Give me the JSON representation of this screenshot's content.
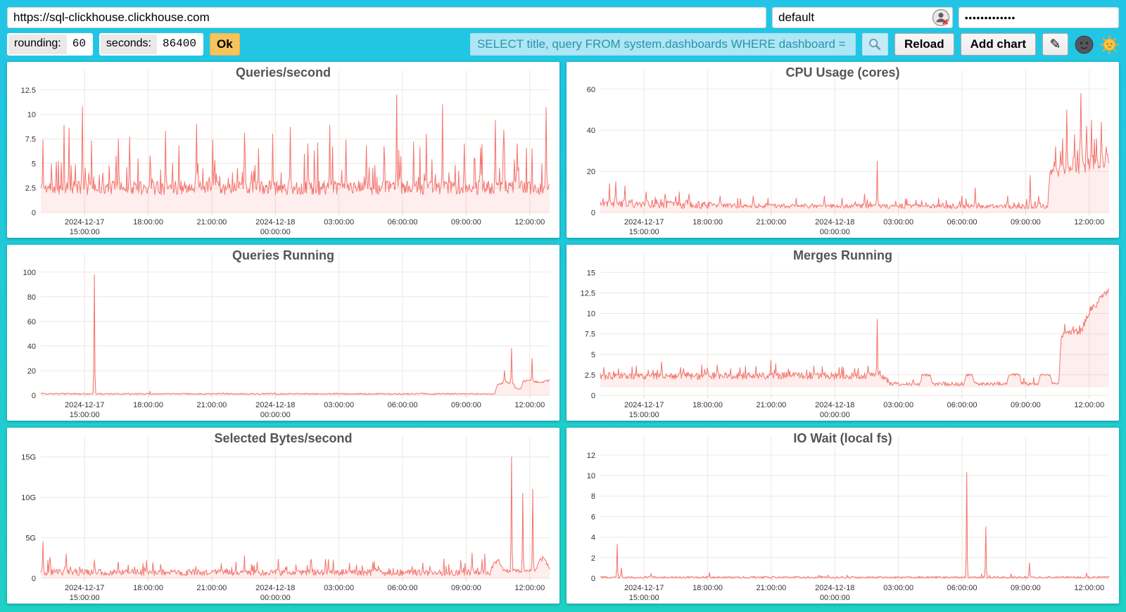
{
  "toolbar": {
    "url": "https://sql-clickhouse.clickhouse.com",
    "user": "default",
    "password_masked": "•••••••••••••",
    "rounding_label": "rounding:",
    "rounding_value": "60",
    "seconds_label": "seconds:",
    "seconds_value": "86400",
    "ok_label": "Ok",
    "search_query": "SELECT title, query FROM system.dashboards WHERE dashboard = '",
    "reload_label": "Reload",
    "add_chart_label": "Add chart",
    "edit_glyph": "✎"
  },
  "icons": {
    "search": "magnifier-icon",
    "edit": "pencil-icon",
    "mass_editor": "dark-moon-face-icon",
    "theme_toggle": "sun-face-icon",
    "user_field_badge": "user-circle-with-red-x-icon"
  },
  "colors": {
    "background_top": "#22c5e6",
    "background_bottom": "#1fd0c4",
    "line": "#f4736d",
    "area_fill": "rgba(244,112,106,0.12)",
    "grid": "#ebe8df",
    "ok_button": "#f6c35c",
    "search_field_bg": "#ade6f4",
    "search_field_text": "#2b93a8",
    "chart_title_text": "#545454"
  },
  "encoding_note": "segments = [x_frac, baseline, jitter, spike_prob, spike_amp]; spikes = [x_frac, value]; x_frac 0..1 spans the 24h window shown on the x axis",
  "chart_data": [
    {
      "type": "area",
      "title": "Queries/second",
      "ylim": [
        0,
        13.2
      ],
      "yticks": [
        {
          "v": 0,
          "label": "0"
        },
        {
          "v": 2.5,
          "label": "2.5"
        },
        {
          "v": 5,
          "label": "5"
        },
        {
          "v": 7.5,
          "label": "7.5"
        },
        {
          "v": 10,
          "label": "10"
        },
        {
          "v": 12.5,
          "label": "12.5"
        }
      ],
      "xticks": [
        {
          "frac": 0.086,
          "line1": "2024-12-17",
          "line2": "15:00:00"
        },
        {
          "frac": 0.211,
          "line1": "18:00:00"
        },
        {
          "frac": 0.336,
          "line1": "21:00:00"
        },
        {
          "frac": 0.461,
          "line1": "2024-12-18",
          "line2": "00:00:00"
        },
        {
          "frac": 0.586,
          "line1": "03:00:00"
        },
        {
          "frac": 0.711,
          "line1": "06:00:00"
        },
        {
          "frac": 0.836,
          "line1": "09:00:00"
        },
        {
          "frac": 0.961,
          "line1": "12:00:00"
        }
      ],
      "fill_to": 0,
      "seed": 11,
      "segments": [
        [
          0,
          2.35,
          0.9,
          0.1,
          4.2
        ],
        [
          1,
          2.35,
          0.9,
          0.1,
          4.2
        ]
      ],
      "spikes": [
        [
          0.004,
          7.4
        ],
        [
          0.046,
          8.9
        ],
        [
          0.056,
          8.6
        ],
        [
          0.082,
          10.8
        ],
        [
          0.1,
          7.3
        ],
        [
          0.152,
          7.5
        ],
        [
          0.175,
          7.7
        ],
        [
          0.245,
          8.3
        ],
        [
          0.272,
          6.8
        ],
        [
          0.306,
          9.0
        ],
        [
          0.338,
          7.4
        ],
        [
          0.4,
          8.1
        ],
        [
          0.428,
          6.5
        ],
        [
          0.455,
          8.0
        ],
        [
          0.49,
          8.7
        ],
        [
          0.525,
          7.0
        ],
        [
          0.568,
          8.9
        ],
        [
          0.6,
          7.4
        ],
        [
          0.64,
          6.8
        ],
        [
          0.7,
          12.0
        ],
        [
          0.733,
          7.2
        ],
        [
          0.757,
          8.0
        ],
        [
          0.79,
          11.0
        ],
        [
          0.833,
          7.0
        ],
        [
          0.864,
          6.6
        ],
        [
          0.894,
          9.4
        ],
        [
          0.91,
          8.4
        ],
        [
          0.936,
          7.0
        ],
        [
          0.965,
          6.5
        ],
        [
          0.993,
          10.7
        ]
      ]
    },
    {
      "type": "area",
      "title": "CPU Usage (cores)",
      "ylim": [
        0,
        63
      ],
      "yticks": [
        {
          "v": 0,
          "label": "0"
        },
        {
          "v": 20,
          "label": "20"
        },
        {
          "v": 40,
          "label": "40"
        },
        {
          "v": 60,
          "label": "60"
        }
      ],
      "xticks": [
        {
          "frac": 0.086,
          "line1": "2024-12-17",
          "line2": "15:00:00"
        },
        {
          "frac": 0.211,
          "line1": "18:00:00"
        },
        {
          "frac": 0.336,
          "line1": "21:00:00"
        },
        {
          "frac": 0.461,
          "line1": "2024-12-18",
          "line2": "00:00:00"
        },
        {
          "frac": 0.586,
          "line1": "03:00:00"
        },
        {
          "frac": 0.711,
          "line1": "06:00:00"
        },
        {
          "frac": 0.836,
          "line1": "09:00:00"
        },
        {
          "frac": 0.961,
          "line1": "12:00:00"
        }
      ],
      "fill_to": 0,
      "seed": 22,
      "segments": [
        [
          0,
          4.2,
          2.5,
          0.1,
          5
        ],
        [
          0.22,
          3.0,
          1.4,
          0.07,
          3.5
        ],
        [
          0.87,
          2.6,
          1.4,
          0.07,
          3.5
        ],
        [
          0.879,
          2.6,
          1.4,
          0,
          0
        ],
        [
          0.884,
          19,
          3.5,
          0.12,
          8
        ],
        [
          0.93,
          20,
          4,
          0.12,
          10
        ],
        [
          1,
          25,
          4,
          0.12,
          10
        ]
      ],
      "spikes": [
        [
          0.018,
          14
        ],
        [
          0.03,
          15
        ],
        [
          0.048,
          13
        ],
        [
          0.09,
          10
        ],
        [
          0.128,
          9
        ],
        [
          0.155,
          10
        ],
        [
          0.175,
          9
        ],
        [
          0.235,
          8
        ],
        [
          0.3,
          8
        ],
        [
          0.33,
          7
        ],
        [
          0.385,
          7
        ],
        [
          0.44,
          8
        ],
        [
          0.475,
          7
        ],
        [
          0.52,
          9
        ],
        [
          0.545,
          25
        ],
        [
          0.62,
          6
        ],
        [
          0.665,
          7
        ],
        [
          0.71,
          8
        ],
        [
          0.737,
          12
        ],
        [
          0.8,
          8
        ],
        [
          0.845,
          18
        ],
        [
          0.862,
          8
        ],
        [
          0.895,
          32
        ],
        [
          0.908,
          36
        ],
        [
          0.917,
          50
        ],
        [
          0.932,
          38
        ],
        [
          0.944,
          58
        ],
        [
          0.955,
          42
        ],
        [
          0.965,
          45
        ],
        [
          0.975,
          36
        ],
        [
          0.985,
          44
        ],
        [
          0.995,
          32
        ]
      ]
    },
    {
      "type": "area",
      "title": "Queries Running",
      "ylim": [
        0,
        105
      ],
      "yticks": [
        {
          "v": 0,
          "label": "0"
        },
        {
          "v": 20,
          "label": "20"
        },
        {
          "v": 40,
          "label": "40"
        },
        {
          "v": 60,
          "label": "60"
        },
        {
          "v": 80,
          "label": "80"
        },
        {
          "v": 100,
          "label": "100"
        }
      ],
      "xticks": [
        {
          "frac": 0.086,
          "line1": "2024-12-17",
          "line2": "15:00:00"
        },
        {
          "frac": 0.211,
          "line1": "18:00:00"
        },
        {
          "frac": 0.336,
          "line1": "21:00:00"
        },
        {
          "frac": 0.461,
          "line1": "2024-12-18",
          "line2": "00:00:00"
        },
        {
          "frac": 0.586,
          "line1": "03:00:00"
        },
        {
          "frac": 0.711,
          "line1": "06:00:00"
        },
        {
          "frac": 0.836,
          "line1": "09:00:00"
        },
        {
          "frac": 0.961,
          "line1": "12:00:00"
        }
      ],
      "fill_to": 0,
      "seed": 33,
      "segments": [
        [
          0,
          1.1,
          0.7,
          0.02,
          1.5
        ],
        [
          0.892,
          1.1,
          0.7,
          0,
          0
        ],
        [
          0.897,
          8,
          1.2,
          0,
          0
        ],
        [
          0.906,
          10,
          1.2,
          0,
          0
        ],
        [
          0.915,
          10.5,
          1.2,
          0,
          0
        ],
        [
          0.928,
          9.5,
          1,
          0,
          0
        ],
        [
          0.934,
          5.5,
          0.8,
          0,
          0
        ],
        [
          0.944,
          5.5,
          0.8,
          0,
          0
        ],
        [
          0.948,
          11,
          1,
          0,
          0
        ],
        [
          0.958,
          12,
          1,
          0,
          0
        ],
        [
          0.968,
          11,
          1,
          0,
          0
        ],
        [
          0.985,
          10.5,
          1,
          0,
          0
        ],
        [
          1,
          12,
          1,
          0,
          0
        ]
      ],
      "spikes": [
        [
          0.105,
          98
        ],
        [
          0.912,
          20
        ],
        [
          0.925,
          38
        ],
        [
          0.965,
          30
        ]
      ]
    },
    {
      "type": "area",
      "title": "Merges Running",
      "ylim": [
        0,
        15.8
      ],
      "yticks": [
        {
          "v": 0,
          "label": "0"
        },
        {
          "v": 2.5,
          "label": "2.5"
        },
        {
          "v": 5,
          "label": "5"
        },
        {
          "v": 7.5,
          "label": "7.5"
        },
        {
          "v": 10,
          "label": "10"
        },
        {
          "v": 12.5,
          "label": "12.5"
        },
        {
          "v": 15,
          "label": "15"
        }
      ],
      "xticks": [
        {
          "frac": 0.086,
          "line1": "2024-12-17",
          "line2": "15:00:00"
        },
        {
          "frac": 0.211,
          "line1": "18:00:00"
        },
        {
          "frac": 0.336,
          "line1": "21:00:00"
        },
        {
          "frac": 0.461,
          "line1": "2024-12-18",
          "line2": "00:00:00"
        },
        {
          "frac": 0.586,
          "line1": "03:00:00"
        },
        {
          "frac": 0.711,
          "line1": "06:00:00"
        },
        {
          "frac": 0.836,
          "line1": "09:00:00"
        },
        {
          "frac": 0.961,
          "line1": "12:00:00"
        }
      ],
      "fill_to": 1,
      "seed": 44,
      "segments": [
        [
          0,
          2.25,
          0.55,
          0.07,
          1.3
        ],
        [
          0.555,
          2.3,
          0.55,
          0.07,
          1.3
        ],
        [
          0.568,
          1.35,
          0.3,
          0.05,
          1.0
        ],
        [
          0.628,
          1.35,
          0.3,
          0.05,
          1.0
        ],
        [
          0.633,
          2.45,
          0.18,
          0,
          0
        ],
        [
          0.648,
          2.45,
          0.18,
          0,
          0
        ],
        [
          0.653,
          1.35,
          0.3,
          0.05,
          1.0
        ],
        [
          0.714,
          1.35,
          0.2,
          0,
          0
        ],
        [
          0.719,
          2.45,
          0.18,
          0,
          0
        ],
        [
          0.731,
          2.45,
          0.18,
          0,
          0
        ],
        [
          0.736,
          1.35,
          0.3,
          0.05,
          1.0
        ],
        [
          0.799,
          1.35,
          0.2,
          0,
          0
        ],
        [
          0.803,
          2.5,
          0.16,
          0,
          0
        ],
        [
          0.824,
          2.5,
          0.16,
          0,
          0
        ],
        [
          0.828,
          1.35,
          0.3,
          0.05,
          1.0
        ],
        [
          0.861,
          1.35,
          0.2,
          0,
          0
        ],
        [
          0.865,
          2.5,
          0.16,
          0,
          0
        ],
        [
          0.884,
          2.5,
          0.16,
          0,
          0
        ],
        [
          0.888,
          1.35,
          0.25,
          0,
          0
        ],
        [
          0.901,
          1.5,
          0.25,
          0,
          0
        ],
        [
          0.906,
          7.3,
          0.55,
          0.08,
          1.2
        ],
        [
          0.944,
          7.7,
          0.6,
          0.08,
          1.4
        ],
        [
          0.954,
          9.0,
          0.6,
          0,
          0
        ],
        [
          0.964,
          10.4,
          0.5,
          0,
          0
        ],
        [
          0.974,
          10.9,
          0.5,
          0,
          0
        ],
        [
          0.984,
          11.9,
          0.45,
          0,
          0
        ],
        [
          1,
          12.7,
          0.35,
          0,
          0
        ]
      ],
      "spikes": [
        [
          0.07,
          3.6
        ],
        [
          0.12,
          4.1
        ],
        [
          0.23,
          3.7
        ],
        [
          0.335,
          4.3
        ],
        [
          0.345,
          3.9
        ],
        [
          0.42,
          3.6
        ],
        [
          0.5,
          3.3
        ],
        [
          0.527,
          3.6
        ],
        [
          0.545,
          9.3
        ]
      ]
    },
    {
      "type": "area",
      "title": "Selected Bytes/second",
      "unit": "G",
      "ylim": [
        0,
        16
      ],
      "yticks": [
        {
          "v": 0,
          "label": "0"
        },
        {
          "v": 5,
          "label": "5G"
        },
        {
          "v": 10,
          "label": "10G"
        },
        {
          "v": 15,
          "label": "15G"
        }
      ],
      "xticks": [
        {
          "frac": 0.086,
          "line1": "2024-12-17",
          "line2": "15:00:00"
        },
        {
          "frac": 0.211,
          "line1": "18:00:00"
        },
        {
          "frac": 0.336,
          "line1": "21:00:00"
        },
        {
          "frac": 0.461,
          "line1": "2024-12-18",
          "line2": "00:00:00"
        },
        {
          "frac": 0.586,
          "line1": "03:00:00"
        },
        {
          "frac": 0.711,
          "line1": "06:00:00"
        },
        {
          "frac": 0.836,
          "line1": "09:00:00"
        },
        {
          "frac": 0.961,
          "line1": "12:00:00"
        }
      ],
      "fill_to": 0,
      "seed": 55,
      "segments": [
        [
          0,
          0.65,
          0.5,
          0.09,
          1.5
        ],
        [
          0.884,
          0.6,
          0.45,
          0.07,
          1.1
        ],
        [
          0.892,
          1.8,
          0.45,
          0,
          0
        ],
        [
          0.9,
          2.1,
          0.4,
          0,
          0
        ],
        [
          0.909,
          1.05,
          0.3,
          0,
          0
        ],
        [
          0.918,
          0.85,
          0.3,
          0.04,
          0.5
        ],
        [
          0.972,
          0.85,
          0.3,
          0,
          0
        ],
        [
          0.98,
          2.3,
          0.4,
          0,
          0
        ],
        [
          0.99,
          2.4,
          0.35,
          0,
          0
        ],
        [
          1,
          0.95,
          0.25,
          0,
          0
        ]
      ],
      "spikes": [
        [
          0.004,
          4.5
        ],
        [
          0.018,
          2.6
        ],
        [
          0.05,
          3.0
        ],
        [
          0.4,
          2.8
        ],
        [
          0.425,
          2.0
        ],
        [
          0.53,
          2.1
        ],
        [
          0.565,
          2.3
        ],
        [
          0.655,
          2.1
        ],
        [
          0.75,
          1.9
        ],
        [
          0.825,
          2.2
        ],
        [
          0.848,
          3.1
        ],
        [
          0.872,
          3.0
        ],
        [
          0.925,
          15.0
        ],
        [
          0.947,
          10.5
        ],
        [
          0.967,
          11.0
        ]
      ]
    },
    {
      "type": "area",
      "title": "IO Wait (local fs)",
      "ylim": [
        0,
        12.6
      ],
      "yticks": [
        {
          "v": 0,
          "label": "0"
        },
        {
          "v": 2,
          "label": "2"
        },
        {
          "v": 4,
          "label": "4"
        },
        {
          "v": 6,
          "label": "6"
        },
        {
          "v": 8,
          "label": "8"
        },
        {
          "v": 10,
          "label": "10"
        },
        {
          "v": 12,
          "label": "12"
        }
      ],
      "xticks": [
        {
          "frac": 0.086,
          "line1": "2024-12-17",
          "line2": "15:00:00"
        },
        {
          "frac": 0.211,
          "line1": "18:00:00"
        },
        {
          "frac": 0.336,
          "line1": "21:00:00"
        },
        {
          "frac": 0.461,
          "line1": "2024-12-18",
          "line2": "00:00:00"
        },
        {
          "frac": 0.586,
          "line1": "03:00:00"
        },
        {
          "frac": 0.711,
          "line1": "06:00:00"
        },
        {
          "frac": 0.836,
          "line1": "09:00:00"
        },
        {
          "frac": 0.961,
          "line1": "12:00:00"
        }
      ],
      "fill_to": 0,
      "seed": 66,
      "segments": [
        [
          0,
          0.07,
          0.12,
          0.015,
          0.35
        ],
        [
          1,
          0.07,
          0.12,
          0.015,
          0.35
        ]
      ],
      "spikes": [
        [
          0.033,
          3.3
        ],
        [
          0.042,
          1.0
        ],
        [
          0.1,
          0.45
        ],
        [
          0.215,
          0.55
        ],
        [
          0.43,
          0.3
        ],
        [
          0.72,
          10.3
        ],
        [
          0.757,
          5.0
        ],
        [
          0.843,
          1.5
        ],
        [
          0.955,
          0.5
        ]
      ]
    }
  ]
}
